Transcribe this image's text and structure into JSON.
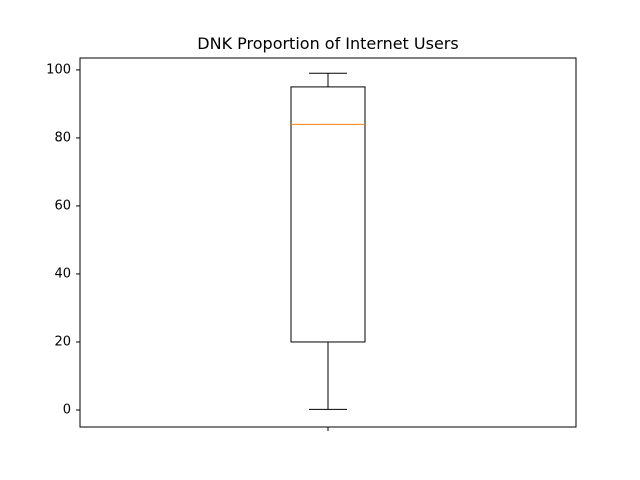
{
  "chart_data": {
    "type": "box",
    "title": "DNK Proportion of Internet Users",
    "xlabel": "",
    "ylabel": "",
    "ylim": [
      -5,
      103.5
    ],
    "yticks": [
      0,
      20,
      40,
      60,
      80,
      100
    ],
    "categories": [
      ""
    ],
    "boxes": [
      {
        "whisker_low": 0.2,
        "q1": 20,
        "median": 84,
        "q3": 95,
        "whisker_high": 99
      }
    ],
    "grid": false,
    "colors": {
      "box": "#000000",
      "median": "#ff7f0e"
    }
  }
}
